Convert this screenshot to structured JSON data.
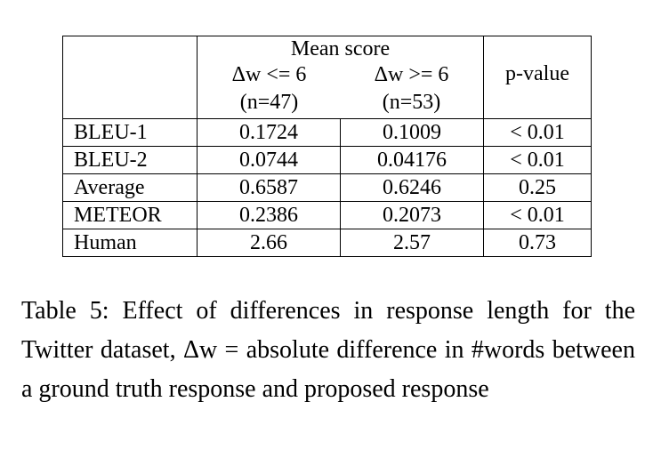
{
  "table": {
    "header": {
      "group_label": "Mean score",
      "col1_label": "Δw <= 6",
      "col1_n": "(n=47)",
      "col2_label": "Δw >= 6",
      "col2_n": "(n=53)",
      "col3_label": "p-value"
    },
    "rows": [
      {
        "label": "BLEU-1",
        "col1": "0.1724",
        "col2": "0.1009",
        "col3": "< 0.01"
      },
      {
        "label": "BLEU-2",
        "col1": "0.0744",
        "col2": "0.04176",
        "col3": "< 0.01"
      },
      {
        "label": "Average",
        "col1": "0.6587",
        "col2": "0.6246",
        "col3": "0.25"
      },
      {
        "label": "METEOR",
        "col1": "0.2386",
        "col2": "0.2073",
        "col3": "< 0.01"
      },
      {
        "label": "Human",
        "col1": "2.66",
        "col2": "2.57",
        "col3": "0.73"
      }
    ]
  },
  "caption": {
    "text": "Table 5:  Effect of differences in response length for the Twitter dataset, Δw = absolute difference in #words between a ground truth response and proposed response"
  }
}
